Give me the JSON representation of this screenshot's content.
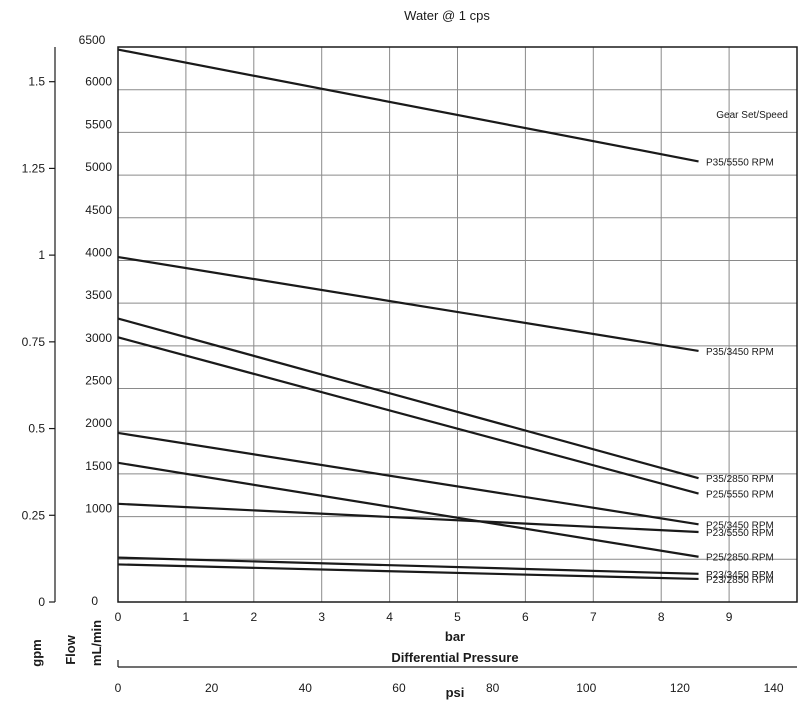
{
  "chart_data": {
    "type": "line",
    "title": "Water @ 1 cps",
    "legend_title": "Gear Set/Speed",
    "x_axis": {
      "label": "bar",
      "range": [
        0,
        10
      ],
      "ticks": [
        "0",
        "1",
        "2",
        "3",
        "4",
        "5",
        "6",
        "7",
        "8",
        "9"
      ]
    },
    "x2_axis": {
      "label": "psi",
      "range": [
        0,
        145
      ],
      "ticks": [
        "0",
        "20",
        "40",
        "60",
        "80",
        "100",
        "120",
        "140"
      ]
    },
    "x_caption": "Differential Pressure",
    "y_axis": {
      "label": "mL/min",
      "range": [
        0,
        6500
      ],
      "ticks": [
        "1000",
        "1500",
        "2000",
        "2500",
        "3000",
        "3500",
        "4000",
        "4500",
        "5000",
        "5500",
        "6000",
        "6500"
      ]
    },
    "y_axis_top_label": "6500",
    "y_axis_zero": "0",
    "y_secondary_axis": {
      "label": "gpm",
      "ticks": [
        "0",
        "0.25",
        "0.5",
        "0.75",
        "1",
        "1.25",
        "1.5"
      ]
    },
    "y_outer_label": "Flow",
    "grid": true,
    "series": [
      {
        "name": "P35/5550 RPM",
        "x": [
          0,
          8.55
        ],
        "y": [
          6470,
          5160
        ]
      },
      {
        "name": "P35/3450 RPM",
        "x": [
          0,
          8.55
        ],
        "y": [
          4040,
          2940
        ]
      },
      {
        "name": "P35/2850 RPM",
        "x": [
          0,
          8.55
        ],
        "y": [
          3320,
          1450
        ]
      },
      {
        "name": "P25/5550 RPM",
        "x": [
          0,
          8.55
        ],
        "y": [
          3100,
          1270
        ]
      },
      {
        "name": "P25/3450 RPM",
        "x": [
          0,
          8.55
        ],
        "y": [
          1980,
          910
        ]
      },
      {
        "name": "P23/5550 RPM",
        "x": [
          0,
          8.55
        ],
        "y": [
          1150,
          820
        ]
      },
      {
        "name": "P25/2850 RPM",
        "x": [
          0,
          8.55
        ],
        "y": [
          1630,
          530
        ]
      },
      {
        "name": "P23/3450 RPM",
        "x": [
          0,
          8.55
        ],
        "y": [
          520,
          330
        ]
      },
      {
        "name": "P23/2850 RPM",
        "x": [
          0,
          8.55
        ],
        "y": [
          440,
          270
        ]
      }
    ]
  }
}
